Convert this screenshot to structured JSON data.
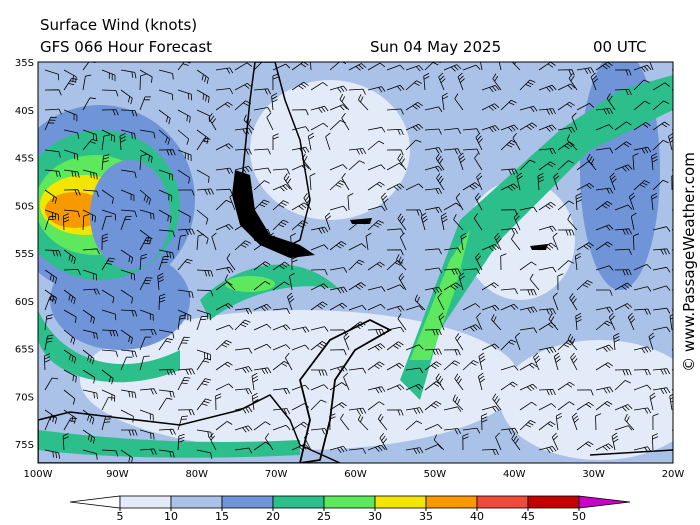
{
  "header": {
    "title": "Surface Wind (knots)",
    "model": "GFS 066 Hour Forecast",
    "date": "Sun 04 May 2025",
    "time": "00 UTC"
  },
  "lat_labels": [
    "35S",
    "40S",
    "45S",
    "50S",
    "55S",
    "60S",
    "65S",
    "70S",
    "75S"
  ],
  "lon_labels": [
    "100W",
    "90W",
    "80W",
    "70W",
    "60W",
    "50W",
    "40W",
    "30W",
    "20W"
  ],
  "colorbar": {
    "ticks": [
      5,
      10,
      15,
      20,
      25,
      30,
      35,
      40,
      45,
      50
    ],
    "colors": [
      "#e4ebf8",
      "#aac1e8",
      "#6f94d8",
      "#2cbf8c",
      "#5ee85e",
      "#f2e600",
      "#f79a00",
      "#ef4a3c",
      "#c20000"
    ],
    "low_color": "#ffffff",
    "high_color": "#c800c8"
  },
  "watermark": "© www.PassageWeather.com"
}
